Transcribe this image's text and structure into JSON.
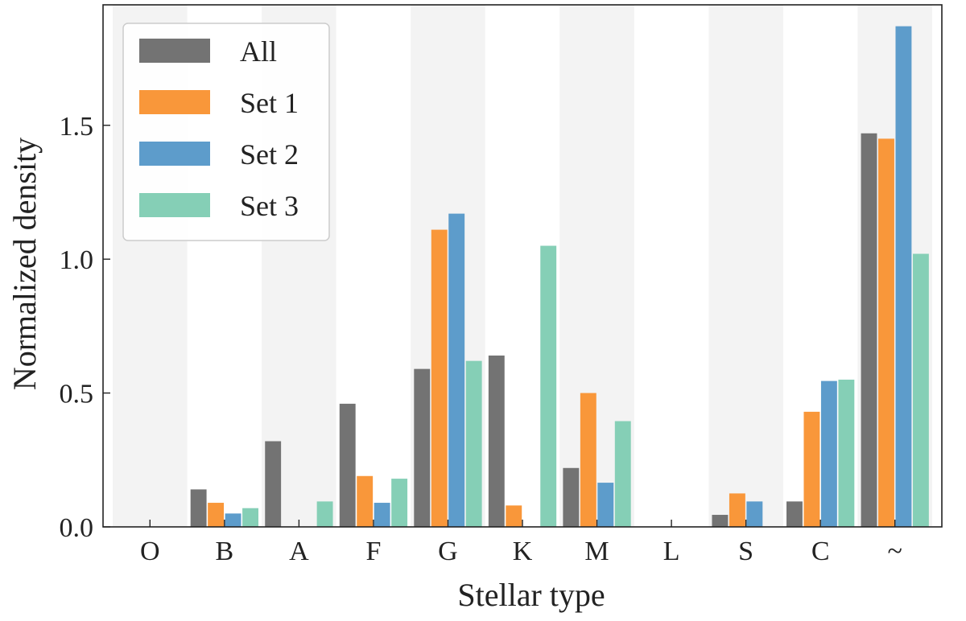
{
  "chart_data": {
    "type": "bar",
    "title": "",
    "xlabel": "Stellar type",
    "ylabel": "Normalized density",
    "categories": [
      "O",
      "B",
      "A",
      "F",
      "G",
      "K",
      "M",
      "L",
      "S",
      "C",
      "~"
    ],
    "ylim": [
      0,
      1.95
    ],
    "yticks": [
      0.0,
      0.5,
      1.0,
      1.5
    ],
    "ytick_labels": [
      "0.0",
      "0.5",
      "1.0",
      "1.5"
    ],
    "grid": false,
    "alternating_band_color": "#f3f3f3",
    "legend_position": "top-left",
    "series": [
      {
        "name": "All",
        "color": "#737373",
        "values": [
          0.0,
          0.14,
          0.32,
          0.46,
          0.59,
          0.64,
          0.22,
          0.0,
          0.045,
          0.095,
          1.47
        ]
      },
      {
        "name": "Set 1",
        "color": "#f9973a",
        "values": [
          0.0,
          0.09,
          0.0,
          0.19,
          1.11,
          0.08,
          0.5,
          0.0,
          0.125,
          0.43,
          1.45
        ]
      },
      {
        "name": "Set 2",
        "color": "#5d9ccb",
        "values": [
          0.0,
          0.05,
          0.0,
          0.09,
          1.17,
          0.0,
          0.165,
          0.0,
          0.095,
          0.545,
          1.87
        ]
      },
      {
        "name": "Set 3",
        "color": "#85cfb6",
        "values": [
          0.0,
          0.07,
          0.095,
          0.18,
          0.62,
          1.05,
          0.395,
          0.0,
          0.0,
          0.55,
          1.02
        ]
      }
    ]
  }
}
